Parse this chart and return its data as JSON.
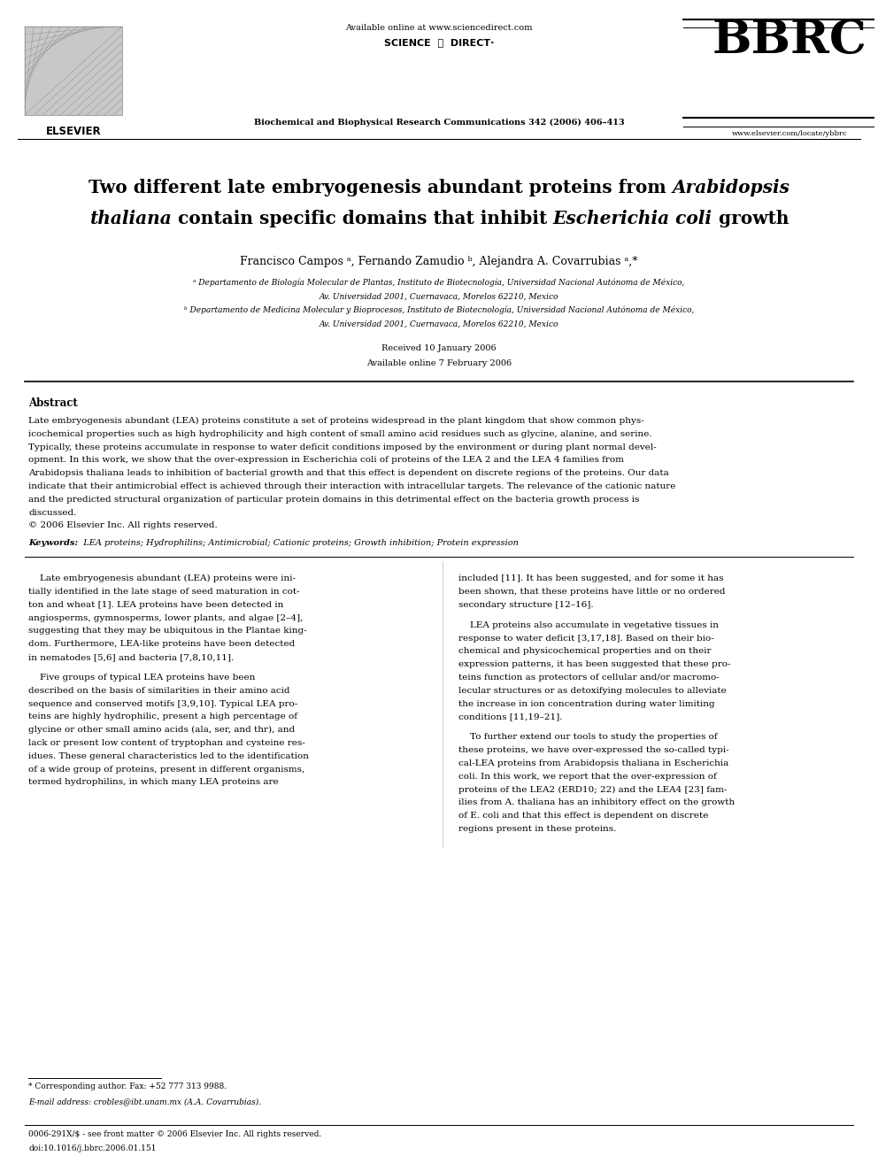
{
  "figsize": [
    9.92,
    13.23
  ],
  "dpi": 100,
  "bg_color": "#ffffff",
  "available_online": "Available online at www.sciencedirect.com",
  "journal_name": "Biochemical and Biophysical Research Communications 342 (2006) 406–413",
  "website": "www.elsevier.com/locate/ybbrc",
  "bbrc_text": "BBRC",
  "elsevier_text": "ELSEVIER",
  "title_normal1": "Two different late embryogenesis abundant proteins from ",
  "title_italic1": "Arabidopsis",
  "title_italic2": "thaliana",
  "title_normal2": " contain specific domains that inhibit ",
  "title_italic3": "Escherichia coli",
  "title_normal3": " growth",
  "authors": "Francisco Campos ᵃ, Fernando Zamudio ᵇ, Alejandra A. Covarrubias ᵃ,*",
  "affil_a": "ᵃ Departamento de Biología Molecular de Plantas, Instituto de Biotecnología, Universidad Nacional Autónoma de México,",
  "affil_a2": "Av. Universidad 2001, Cuernavaca, Morelos 62210, Mexico",
  "affil_b": "ᵇ Departamento de Medicina Molecular y Bioprocesos, Instituto de Biotecnología, Universidad Nacional Autónoma de México,",
  "affil_b2": "Av. Universidad 2001, Cuernavaca, Morelos 62210, Mexico",
  "received": "Received 10 January 2006",
  "available_date": "Available online 7 February 2006",
  "abstract_header": "Abstract",
  "abstract_text": "Late embryogenesis abundant (LEA) proteins constitute a set of proteins widespread in the plant kingdom that show common phys-\nicochemical properties such as high hydrophilicity and high content of small amino acid residues such as glycine, alanine, and serine.\nTypically, these proteins accumulate in response to water deficit conditions imposed by the environment or during plant normal devel-\nopment. In this work, we show that the over-expression in Escherichia coli of proteins of the LEA 2 and the LEA 4 families from\nArabidopsis thaliana leads to inhibition of bacterial growth and that this effect is dependent on discrete regions of the proteins. Our data\nindicate that their antimicrobial effect is achieved through their interaction with intracellular targets. The relevance of the cationic nature\nand the predicted structural organization of particular protein domains in this detrimental effect on the bacteria growth process is\ndiscussed.\n© 2006 Elsevier Inc. All rights reserved.",
  "keywords_bold": "Keywords:",
  "keywords_rest": "  LEA proteins; Hydrophilins; Antimicrobial; Cationic proteins; Growth inhibition; Protein expression",
  "body_left_p1": "Late embryogenesis abundant (LEA) proteins were ini-\ntially identified in the late stage of seed maturation in cot-\nton and wheat [1]. LEA proteins have been detected in\nangiosperms, gymnosperms, lower plants, and algae [2–4],\nsuggesting that they may be ubiquitous in the Plantae king-\ndom. Furthermore, LEA-like proteins have been detected\nin nematodes [5,6] and bacteria [7,8,10,11].",
  "body_left_p2": "Five groups of typical LEA proteins have been\ndescribed on the basis of similarities in their amino acid\nsequence and conserved motifs [3,9,10]. Typical LEA pro-\nteins are highly hydrophilic, present a high percentage of\nglycine or other small amino acids (ala, ser, and thr), and\nlack or present low content of tryptophan and cysteine res-\nidues. These general characteristics led to the identification\nof a wide group of proteins, present in different organisms,\ntermed hydrophilins, in which many LEA proteins are",
  "body_right_p1": "included [11]. It has been suggested, and for some it has\nbeen shown, that these proteins have little or no ordered\nsecondary structure [12–16].",
  "body_right_p2": "LEA proteins also accumulate in vegetative tissues in\nresponse to water deficit [3,17,18]. Based on their bio-\nchemical and physicochemical properties and on their\nexpression patterns, it has been suggested that these pro-\nteins function as protectors of cellular and/or macromo-\nlecular structures or as detoxifying molecules to alleviate\nthe increase in ion concentration during water limiting\nconditions [11,19–21].",
  "body_right_p3": "To further extend our tools to study the properties of\nthese proteins, we have over-expressed the so-called typi-\ncal-LEA proteins from Arabidopsis thaliana in Escherichia\ncoli. In this work, we report that the over-expression of\nproteins of the LEA2 (ERD10; 22) and the LEA4 [23] fam-\nilies from A. thaliana has an inhibitory effect on the growth\nof E. coli and that this effect is dependent on discrete\nregions present in these proteins.",
  "footnote_star": "* Corresponding author. Fax: +52 777 313 9988.",
  "footnote_email": "E-mail address: crobles@ibt.unam.mx (A.A. Covarrubias).",
  "footnote_issn": "0006-291X/$ - see front matter © 2006 Elsevier Inc. All rights reserved.",
  "footnote_doi": "doi:10.1016/j.bbrc.2006.01.151"
}
